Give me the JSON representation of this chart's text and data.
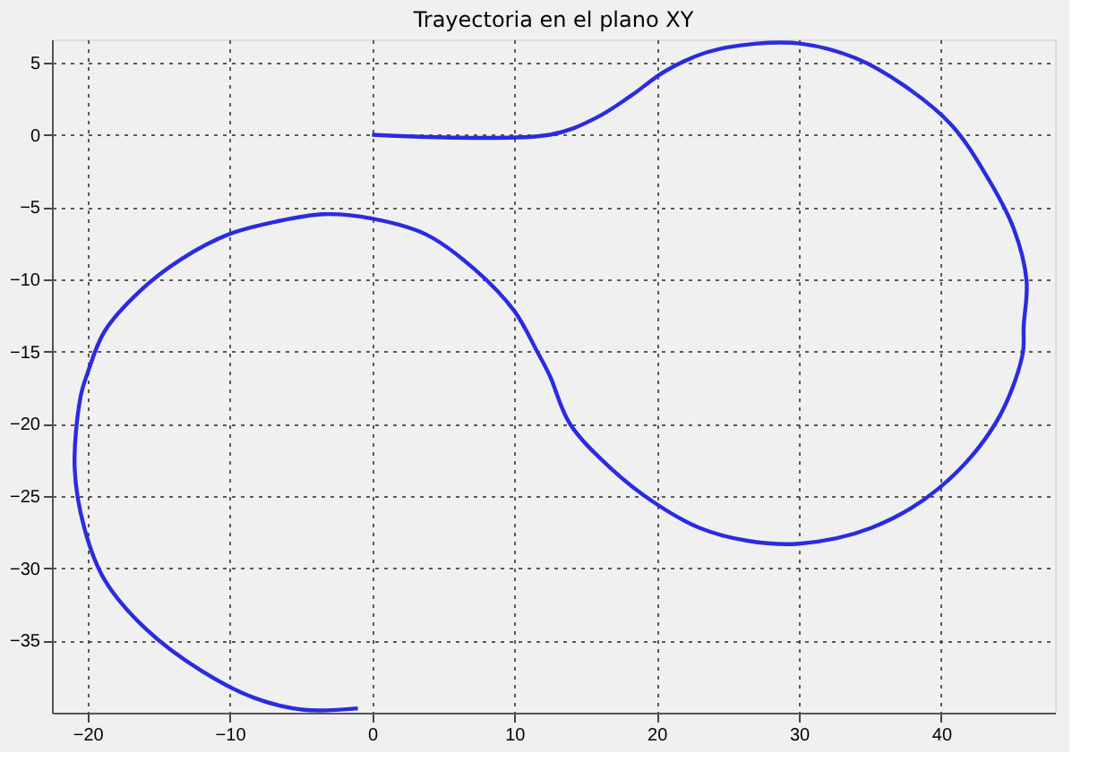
{
  "chart_data": {
    "type": "line",
    "title": "Trayectoria en el plano XY",
    "xlim": [
      -22.5,
      48
    ],
    "ylim": [
      -40,
      6.6
    ],
    "xticks": [
      -20,
      -10,
      0,
      10,
      20,
      30,
      40
    ],
    "yticks": [
      5,
      0,
      -5,
      -10,
      -15,
      -20,
      -25,
      -30,
      -35
    ],
    "grid": true,
    "line_style": "solid",
    "marker": "none",
    "series": [
      {
        "color": "#2b2be0",
        "x": [
          0,
          12.5,
          15.8,
          18.2,
          20.6,
          23.5,
          26.9,
          30.2,
          34,
          37.4,
          40.7,
          43.1,
          45.1,
          46,
          45.8,
          45.7,
          43.8,
          39.8,
          35.1,
          30,
          26.4,
          23,
          19.9,
          16.8,
          13.9,
          12.5,
          11.6,
          10,
          7.2,
          3.8,
          0,
          -3.4,
          -6.7,
          -10.1,
          -13.4,
          -16.3,
          -18.8,
          -20,
          -20.5,
          -20.9,
          -20.2,
          -18.8,
          -15.9,
          -12,
          -8.2,
          -4.8,
          -1
        ],
        "values": [
          0,
          0,
          1.2,
          2.7,
          4.4,
          5.7,
          6.3,
          6.3,
          5.3,
          3.4,
          0.7,
          -2.7,
          -6.5,
          -10.1,
          -13.2,
          -15.3,
          -20,
          -24.5,
          -27.2,
          -28.3,
          -28.1,
          -27.2,
          -25.5,
          -23.1,
          -20,
          -16.7,
          -15,
          -12.2,
          -9.3,
          -6.9,
          -5.8,
          -5.5,
          -6,
          -6.9,
          -8.6,
          -10.8,
          -13.6,
          -16.5,
          -18.2,
          -23.1,
          -27.3,
          -30.8,
          -34.2,
          -37.1,
          -39,
          -39.8,
          -39.7
        ]
      }
    ]
  }
}
